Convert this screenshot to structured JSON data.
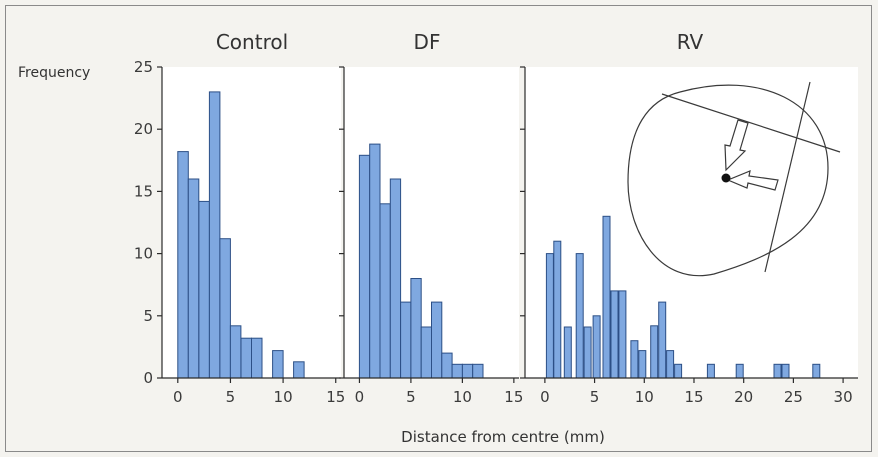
{
  "chart_data": [
    {
      "type": "bar",
      "title": "Control",
      "ylabel": "Frequency",
      "xlim": [
        -1.5,
        15.5
      ],
      "ylim": [
        0,
        25
      ],
      "xticks": [
        0,
        5,
        10,
        15
      ],
      "yticks": [
        0,
        5,
        10,
        15,
        20,
        25
      ],
      "bin_width": 1,
      "x": [
        0.5,
        1.5,
        2.5,
        3.5,
        4.5,
        5.5,
        6.5,
        7.5,
        9.5,
        11.5
      ],
      "values": [
        18.2,
        16,
        14.2,
        23,
        11.2,
        4.2,
        3.2,
        3.2,
        2.2,
        1.3
      ]
    },
    {
      "type": "bar",
      "title": "DF",
      "xlim": [
        -1.5,
        15.5
      ],
      "ylim": [
        0,
        25
      ],
      "xticks": [
        0,
        5,
        10,
        15
      ],
      "bin_width": 1,
      "x": [
        0.5,
        1.5,
        2.5,
        3.5,
        4.5,
        5.5,
        6.5,
        7.5,
        8.5,
        9.5,
        10.5,
        11.5
      ],
      "values": [
        17.9,
        18.8,
        14,
        16,
        6.1,
        8,
        4.1,
        6.1,
        2,
        1.1,
        1.1,
        1.1
      ]
    },
    {
      "type": "bar",
      "title": "RV",
      "xlim": [
        -2,
        31.5
      ],
      "ylim": [
        0,
        25
      ],
      "xticks": [
        0,
        5,
        10,
        15,
        20,
        25,
        30
      ],
      "bin_width": 0.7,
      "x": [
        0.5,
        1.25,
        2.3,
        3.5,
        4.3,
        5.2,
        6.2,
        7.0,
        7.8,
        9.0,
        9.8,
        11.0,
        11.8,
        12.6,
        13.4,
        14.5,
        16.7,
        19.6,
        23.4,
        24.2,
        27.3
      ],
      "values": [
        10,
        11,
        4.1,
        10,
        4.1,
        5,
        13,
        7,
        7,
        3,
        2.2,
        4.2,
        6.1,
        2.2,
        1.1,
        0,
        1.1,
        1.1,
        1.1,
        1.1,
        1.1
      ]
    }
  ],
  "xlabel": "Distance from centre (mm)",
  "inset": {
    "icon": "cross-section-diagram-icon"
  }
}
